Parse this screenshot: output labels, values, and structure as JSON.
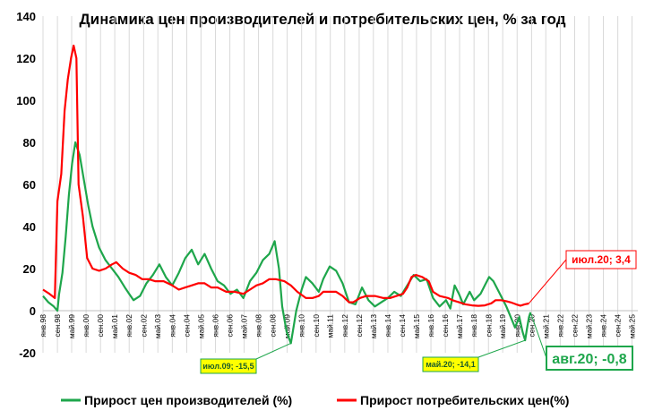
{
  "chart_data": {
    "type": "line",
    "title": "Динамика цен производителей и потребительских цен, % за год",
    "xlabel": "",
    "ylabel": "",
    "ylim": [
      -20,
      140
    ],
    "yticks": [
      -20,
      0,
      20,
      40,
      60,
      80,
      100,
      120,
      140
    ],
    "xlim": [
      1998.0,
      2025.6
    ],
    "grid": "vertical",
    "legend_position": "bottom",
    "x_tick_labels": [
      {
        "x": 1998.0,
        "label": "янв.98"
      },
      {
        "x": 1998.67,
        "label": "сен.98"
      },
      {
        "x": 1999.33,
        "label": "май.99"
      },
      {
        "x": 2000.0,
        "label": "янв.00"
      },
      {
        "x": 2000.67,
        "label": "сен.00"
      },
      {
        "x": 2001.33,
        "label": "май.01"
      },
      {
        "x": 2002.0,
        "label": "янв.02"
      },
      {
        "x": 2002.67,
        "label": "сен.02"
      },
      {
        "x": 2003.33,
        "label": "май.03"
      },
      {
        "x": 2004.0,
        "label": "янв.04"
      },
      {
        "x": 2004.67,
        "label": "сен.04"
      },
      {
        "x": 2005.33,
        "label": "май.05"
      },
      {
        "x": 2006.0,
        "label": "янв.06"
      },
      {
        "x": 2006.67,
        "label": "сен.06"
      },
      {
        "x": 2007.33,
        "label": "май.07"
      },
      {
        "x": 2008.0,
        "label": "янв.08"
      },
      {
        "x": 2008.67,
        "label": "сен.08"
      },
      {
        "x": 2009.33,
        "label": "май.09"
      },
      {
        "x": 2010.0,
        "label": "янв.10"
      },
      {
        "x": 2010.67,
        "label": "сен.10"
      },
      {
        "x": 2011.33,
        "label": "май.11"
      },
      {
        "x": 2012.0,
        "label": "янв.12"
      },
      {
        "x": 2012.67,
        "label": "сен.12"
      },
      {
        "x": 2013.33,
        "label": "май.13"
      },
      {
        "x": 2014.0,
        "label": "янв.14"
      },
      {
        "x": 2014.67,
        "label": "сен.14"
      },
      {
        "x": 2015.33,
        "label": "май.15"
      },
      {
        "x": 2016.0,
        "label": "янв.16"
      },
      {
        "x": 2016.67,
        "label": "сен.16"
      },
      {
        "x": 2017.33,
        "label": "май.17"
      },
      {
        "x": 2018.0,
        "label": "янв.18"
      },
      {
        "x": 2018.67,
        "label": "сен.18"
      },
      {
        "x": 2019.33,
        "label": "май.19"
      },
      {
        "x": 2020.0,
        "label": "янв.20"
      },
      {
        "x": 2020.67,
        "label": "сен.20"
      },
      {
        "x": 2021.33,
        "label": "май.21"
      },
      {
        "x": 2022.0,
        "label": "янв.22"
      },
      {
        "x": 2022.67,
        "label": "сен.22"
      },
      {
        "x": 2023.33,
        "label": "май.23"
      },
      {
        "x": 2024.0,
        "label": "янв.24"
      },
      {
        "x": 2024.67,
        "label": "сен.24"
      },
      {
        "x": 2025.33,
        "label": "май.25"
      }
    ],
    "series": [
      {
        "name": "Прирост цен производителей (%)",
        "color": "#1ea64b",
        "points": [
          [
            1998.0,
            7
          ],
          [
            1998.25,
            4
          ],
          [
            1998.5,
            2
          ],
          [
            1998.67,
            0
          ],
          [
            1998.75,
            8
          ],
          [
            1998.9,
            18
          ],
          [
            1999.05,
            35
          ],
          [
            1999.2,
            55
          ],
          [
            1999.35,
            70
          ],
          [
            1999.5,
            80
          ],
          [
            1999.7,
            74
          ],
          [
            1999.9,
            62
          ],
          [
            2000.1,
            50
          ],
          [
            2000.3,
            40
          ],
          [
            2000.6,
            30
          ],
          [
            2000.9,
            24
          ],
          [
            2001.2,
            20
          ],
          [
            2001.5,
            16
          ],
          [
            2001.8,
            11
          ],
          [
            2002.0,
            8
          ],
          [
            2002.2,
            5
          ],
          [
            2002.5,
            7
          ],
          [
            2002.8,
            13
          ],
          [
            2003.1,
            17
          ],
          [
            2003.4,
            22
          ],
          [
            2003.7,
            16
          ],
          [
            2004.0,
            12
          ],
          [
            2004.3,
            18
          ],
          [
            2004.6,
            25
          ],
          [
            2004.9,
            29
          ],
          [
            2005.2,
            22
          ],
          [
            2005.5,
            27
          ],
          [
            2005.8,
            20
          ],
          [
            2006.1,
            14
          ],
          [
            2006.4,
            12
          ],
          [
            2006.7,
            8
          ],
          [
            2007.0,
            10
          ],
          [
            2007.3,
            6
          ],
          [
            2007.6,
            14
          ],
          [
            2007.9,
            18
          ],
          [
            2008.2,
            24
          ],
          [
            2008.5,
            27
          ],
          [
            2008.75,
            33
          ],
          [
            2008.95,
            20
          ],
          [
            2009.1,
            2
          ],
          [
            2009.3,
            -10
          ],
          [
            2009.5,
            -15.5
          ],
          [
            2009.75,
            0
          ],
          [
            2010.0,
            10
          ],
          [
            2010.2,
            16
          ],
          [
            2010.5,
            13
          ],
          [
            2010.8,
            9
          ],
          [
            2011.0,
            15
          ],
          [
            2011.3,
            21
          ],
          [
            2011.6,
            19
          ],
          [
            2011.9,
            13
          ],
          [
            2012.2,
            4
          ],
          [
            2012.5,
            3
          ],
          [
            2012.8,
            11
          ],
          [
            2013.1,
            5
          ],
          [
            2013.4,
            2
          ],
          [
            2013.7,
            4
          ],
          [
            2014.0,
            6
          ],
          [
            2014.3,
            9
          ],
          [
            2014.6,
            7
          ],
          [
            2014.9,
            12
          ],
          [
            2015.2,
            17
          ],
          [
            2015.5,
            14
          ],
          [
            2015.8,
            15
          ],
          [
            2016.1,
            6
          ],
          [
            2016.4,
            2
          ],
          [
            2016.7,
            5
          ],
          [
            2016.9,
            1
          ],
          [
            2017.1,
            12
          ],
          [
            2017.3,
            8
          ],
          [
            2017.5,
            3
          ],
          [
            2017.8,
            9
          ],
          [
            2018.0,
            5
          ],
          [
            2018.3,
            8
          ],
          [
            2018.5,
            12
          ],
          [
            2018.7,
            16
          ],
          [
            2018.9,
            14
          ],
          [
            2019.1,
            10
          ],
          [
            2019.3,
            6
          ],
          [
            2019.5,
            2
          ],
          [
            2019.7,
            -3
          ],
          [
            2019.9,
            -8
          ],
          [
            2020.1,
            -3
          ],
          [
            2020.25,
            -10
          ],
          [
            2020.37,
            -14.1
          ],
          [
            2020.45,
            -9
          ],
          [
            2020.55,
            -3
          ],
          [
            2020.62,
            -0.8
          ]
        ]
      },
      {
        "name": "Прирост потребительских цен(%)",
        "color": "#ff0000",
        "points": [
          [
            1998.0,
            10
          ],
          [
            1998.3,
            8
          ],
          [
            1998.55,
            6
          ],
          [
            1998.67,
            52
          ],
          [
            1998.85,
            65
          ],
          [
            1999.0,
            95
          ],
          [
            1999.15,
            110
          ],
          [
            1999.3,
            120
          ],
          [
            1999.42,
            126
          ],
          [
            1999.55,
            120
          ],
          [
            1999.65,
            60
          ],
          [
            1999.85,
            45
          ],
          [
            2000.05,
            25
          ],
          [
            2000.3,
            20
          ],
          [
            2000.6,
            19
          ],
          [
            2000.9,
            20
          ],
          [
            2001.2,
            22
          ],
          [
            2001.4,
            23
          ],
          [
            2001.7,
            20
          ],
          [
            2002.0,
            18
          ],
          [
            2002.3,
            17
          ],
          [
            2002.6,
            15
          ],
          [
            2002.9,
            15
          ],
          [
            2003.2,
            14
          ],
          [
            2003.6,
            14
          ],
          [
            2004.0,
            12
          ],
          [
            2004.3,
            10
          ],
          [
            2004.6,
            11
          ],
          [
            2004.9,
            12
          ],
          [
            2005.2,
            13
          ],
          [
            2005.5,
            13
          ],
          [
            2005.8,
            11
          ],
          [
            2006.1,
            11
          ],
          [
            2006.5,
            9
          ],
          [
            2006.9,
            9
          ],
          [
            2007.3,
            8
          ],
          [
            2007.6,
            10
          ],
          [
            2007.9,
            12
          ],
          [
            2008.2,
            13
          ],
          [
            2008.5,
            15
          ],
          [
            2008.8,
            15
          ],
          [
            2009.2,
            14
          ],
          [
            2009.5,
            12
          ],
          [
            2009.8,
            9
          ],
          [
            2010.2,
            6
          ],
          [
            2010.5,
            6
          ],
          [
            2010.8,
            7
          ],
          [
            2011.0,
            9
          ],
          [
            2011.3,
            9
          ],
          [
            2011.6,
            9
          ],
          [
            2011.9,
            7
          ],
          [
            2012.2,
            4
          ],
          [
            2012.4,
            4
          ],
          [
            2012.7,
            6
          ],
          [
            2013.0,
            7
          ],
          [
            2013.4,
            7
          ],
          [
            2013.8,
            6
          ],
          [
            2014.1,
            6
          ],
          [
            2014.4,
            7
          ],
          [
            2014.7,
            8
          ],
          [
            2014.9,
            11
          ],
          [
            2015.1,
            16
          ],
          [
            2015.3,
            17
          ],
          [
            2015.6,
            16
          ],
          [
            2015.9,
            14
          ],
          [
            2016.1,
            9
          ],
          [
            2016.4,
            7
          ],
          [
            2016.8,
            6
          ],
          [
            2017.0,
            5
          ],
          [
            2017.3,
            4
          ],
          [
            2017.6,
            3
          ],
          [
            2017.9,
            2.5
          ],
          [
            2018.2,
            2.3
          ],
          [
            2018.5,
            2.5
          ],
          [
            2018.8,
            3.5
          ],
          [
            2019.0,
            5
          ],
          [
            2019.25,
            5
          ],
          [
            2019.5,
            4.5
          ],
          [
            2019.75,
            3.8
          ],
          [
            2019.95,
            3
          ],
          [
            2020.15,
            2.4
          ],
          [
            2020.35,
            3
          ],
          [
            2020.54,
            3.4
          ]
        ]
      }
    ],
    "annotations": [
      {
        "text": "июл.20; 3,4",
        "series": 1,
        "x": 2020.54,
        "y": 3.4,
        "style": "red-box"
      },
      {
        "text": "июл.09; -15,5",
        "series": 0,
        "x": 2009.5,
        "y": -15.5,
        "style": "yellow-box"
      },
      {
        "text": "май.20; -14,1",
        "series": 0,
        "x": 2020.37,
        "y": -14.1,
        "style": "yellow-box"
      },
      {
        "text": "авг.20; -0,8",
        "series": 0,
        "x": 2020.62,
        "y": -0.8,
        "style": "green-box"
      }
    ]
  }
}
